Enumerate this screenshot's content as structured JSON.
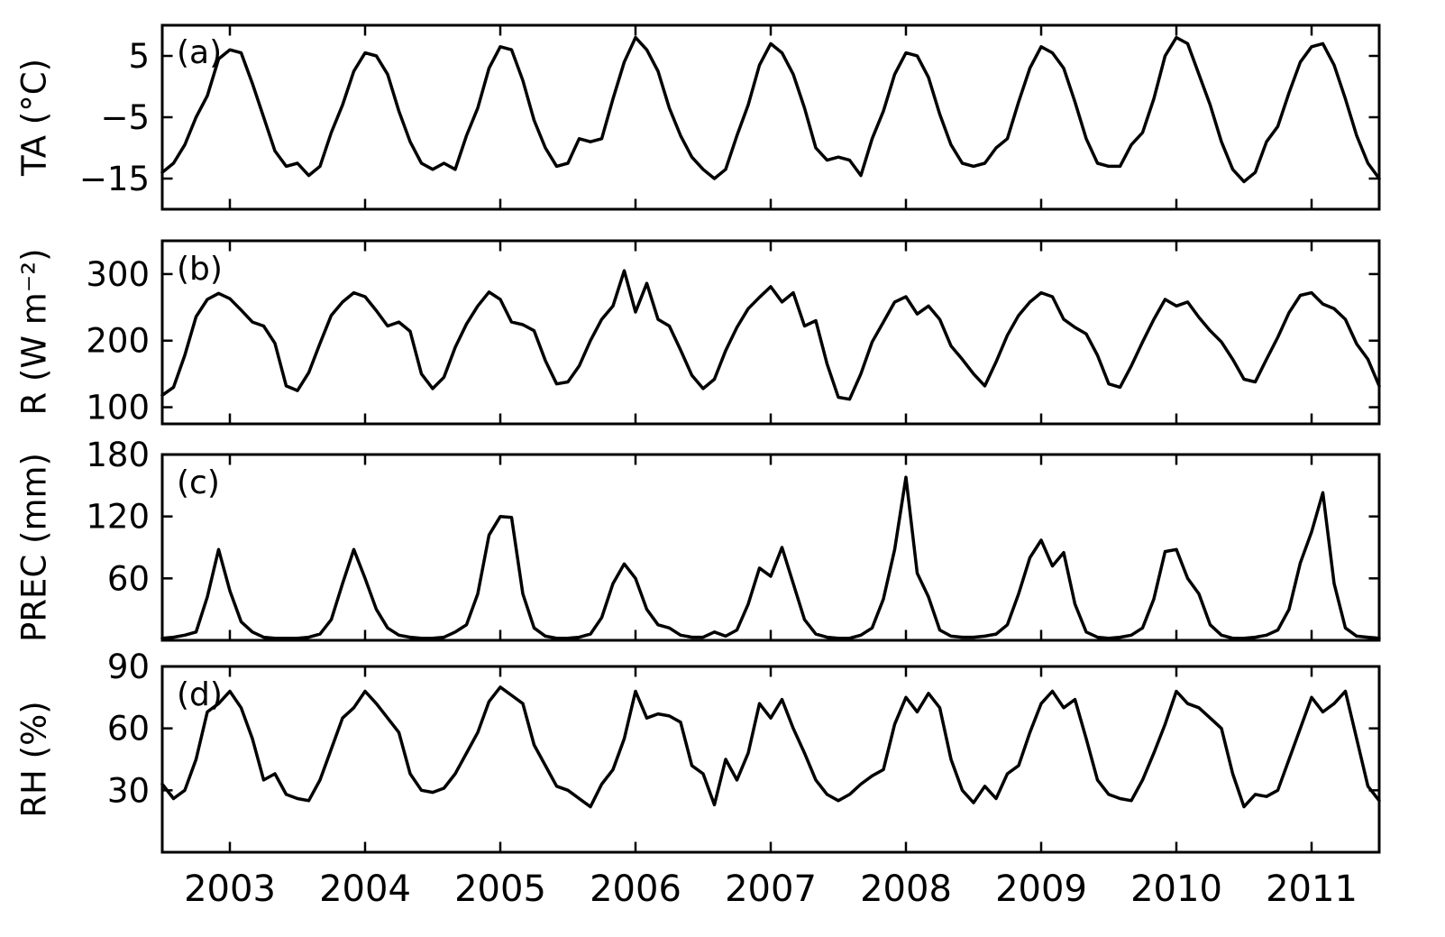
{
  "figure": {
    "background": "#ffffff",
    "line_color": "#000000",
    "axis_color": "#000000"
  },
  "x_axis": {
    "range": [
      2002.5,
      2011.5
    ],
    "tick_values": [
      2003,
      2004,
      2005,
      2006,
      2007,
      2008,
      2009,
      2010,
      2011
    ],
    "tick_labels": [
      "2003",
      "2004",
      "2005",
      "2006",
      "2007",
      "2008",
      "2009",
      "2010",
      "2011"
    ]
  },
  "chart_data": [
    {
      "type": "line",
      "panel_label": "(a)",
      "series_name": "TA",
      "ylabel": "TA (°C)",
      "ylim": [
        -20,
        10
      ],
      "ytick_values": [
        5,
        -5,
        -15
      ],
      "ytick_labels": [
        "5",
        "−5",
        "−15"
      ],
      "x_start": 2002.5,
      "x_step": 0.0833333,
      "x_range": [
        2002.5,
        2011.5
      ],
      "values": [
        -14,
        -12.5,
        -9.5,
        -5,
        -1.5,
        4.5,
        6,
        5.5,
        0.5,
        -5,
        -10.5,
        -13,
        -12.5,
        -14.5,
        -13,
        -7.5,
        -3,
        2.5,
        5.5,
        5,
        2,
        -4,
        -9,
        -12.5,
        -13.5,
        -12.5,
        -13.5,
        -8,
        -3.5,
        3,
        6.5,
        6,
        1,
        -5.5,
        -10,
        -13,
        -12.5,
        -8.5,
        -9,
        -8.5,
        -2,
        4,
        8,
        6,
        2.5,
        -3.5,
        -8,
        -11.5,
        -13.5,
        -15,
        -13.5,
        -8,
        -3,
        3.5,
        7,
        5.5,
        2,
        -3.5,
        -10,
        -12,
        -11.5,
        -12,
        -14.5,
        -8.5,
        -4,
        2,
        5.5,
        5,
        1.5,
        -4.5,
        -9.5,
        -12.5,
        -13,
        -12.5,
        -10,
        -8.5,
        -2.5,
        3,
        6.5,
        5.5,
        3,
        -2.5,
        -8.5,
        -12.5,
        -13,
        -13,
        -9.5,
        -7.5,
        -2,
        5,
        8,
        7,
        2,
        -3,
        -9,
        -13.5,
        -15.5,
        -14,
        -9,
        -6.5,
        -1,
        4,
        6.5,
        7,
        3.5,
        -2,
        -8,
        -12.5,
        -15
      ]
    },
    {
      "type": "line",
      "panel_label": "(b)",
      "series_name": "R",
      "ylabel": "R (W m⁻²)",
      "ylim": [
        75,
        350
      ],
      "ytick_values": [
        300,
        200,
        100
      ],
      "ytick_labels": [
        "300",
        "200",
        "100"
      ],
      "x_start": 2002.5,
      "x_step": 0.0833333,
      "x_range": [
        2002.5,
        2011.5
      ],
      "values": [
        118,
        130,
        178,
        236,
        262,
        271,
        263,
        246,
        228,
        222,
        196,
        132,
        125,
        152,
        196,
        238,
        258,
        272,
        266,
        245,
        222,
        228,
        214,
        150,
        128,
        145,
        190,
        225,
        252,
        273,
        262,
        228,
        224,
        215,
        170,
        135,
        138,
        162,
        200,
        232,
        252,
        305,
        243,
        286,
        232,
        222,
        186,
        148,
        128,
        142,
        185,
        220,
        248,
        265,
        281,
        258,
        272,
        222,
        230,
        165,
        115,
        112,
        150,
        198,
        228,
        258,
        266,
        240,
        252,
        232,
        192,
        172,
        150,
        132,
        168,
        208,
        238,
        258,
        272,
        266,
        232,
        220,
        210,
        178,
        135,
        130,
        162,
        198,
        232,
        262,
        252,
        258,
        235,
        215,
        198,
        172,
        142,
        138,
        172,
        205,
        242,
        268,
        272,
        255,
        248,
        232,
        195,
        172,
        132
      ]
    },
    {
      "type": "line",
      "panel_label": "(c)",
      "series_name": "PREC",
      "ylabel": "PREC (mm)",
      "ylim": [
        0,
        180
      ],
      "ytick_values": [
        180,
        120,
        60
      ],
      "ytick_labels": [
        "180",
        "120",
        "60"
      ],
      "x_start": 2002.5,
      "x_step": 0.0833333,
      "x_range": [
        2002.5,
        2011.5
      ],
      "values": [
        2,
        3,
        5,
        8,
        42,
        88,
        48,
        18,
        8,
        3,
        2,
        2,
        2,
        3,
        6,
        20,
        55,
        88,
        60,
        30,
        12,
        5,
        3,
        2,
        2,
        3,
        8,
        15,
        45,
        102,
        120,
        119,
        45,
        12,
        4,
        2,
        2,
        3,
        6,
        22,
        55,
        74,
        60,
        30,
        15,
        12,
        5,
        3,
        3,
        8,
        4,
        10,
        35,
        70,
        62,
        90,
        55,
        20,
        6,
        3,
        2,
        2,
        5,
        12,
        40,
        88,
        158,
        65,
        42,
        10,
        4,
        3,
        3,
        4,
        6,
        15,
        45,
        80,
        97,
        72,
        85,
        35,
        8,
        3,
        2,
        3,
        5,
        12,
        40,
        86,
        88,
        60,
        45,
        15,
        5,
        2,
        2,
        3,
        5,
        10,
        30,
        75,
        105,
        143,
        55,
        12,
        4,
        3,
        2
      ]
    },
    {
      "type": "line",
      "panel_label": "(d)",
      "series_name": "RH",
      "ylabel": "RH (%)",
      "ylim": [
        0,
        90
      ],
      "ytick_values": [
        90,
        60,
        30
      ],
      "ytick_labels": [
        "90",
        "60",
        "30"
      ],
      "x_start": 2002.5,
      "x_step": 0.0833333,
      "x_range": [
        2002.5,
        2011.5
      ],
      "values": [
        33,
        26,
        30,
        45,
        68,
        72,
        78,
        70,
        55,
        35,
        38,
        28,
        26,
        25,
        35,
        50,
        65,
        70,
        78,
        72,
        65,
        58,
        38,
        30,
        29,
        31,
        38,
        48,
        58,
        73,
        80,
        76,
        72,
        52,
        42,
        32,
        30,
        26,
        22,
        33,
        40,
        55,
        78,
        65,
        67,
        66,
        63,
        42,
        38,
        23,
        45,
        35,
        48,
        72,
        65,
        74,
        60,
        48,
        35,
        28,
        25,
        28,
        33,
        37,
        40,
        62,
        75,
        68,
        77,
        70,
        45,
        30,
        24,
        32,
        26,
        38,
        42,
        58,
        72,
        78,
        70,
        74,
        55,
        35,
        28,
        26,
        25,
        35,
        48,
        62,
        78,
        72,
        70,
        65,
        60,
        38,
        22,
        28,
        27,
        30,
        45,
        60,
        75,
        68,
        72,
        78,
        55,
        32,
        25
      ]
    }
  ]
}
